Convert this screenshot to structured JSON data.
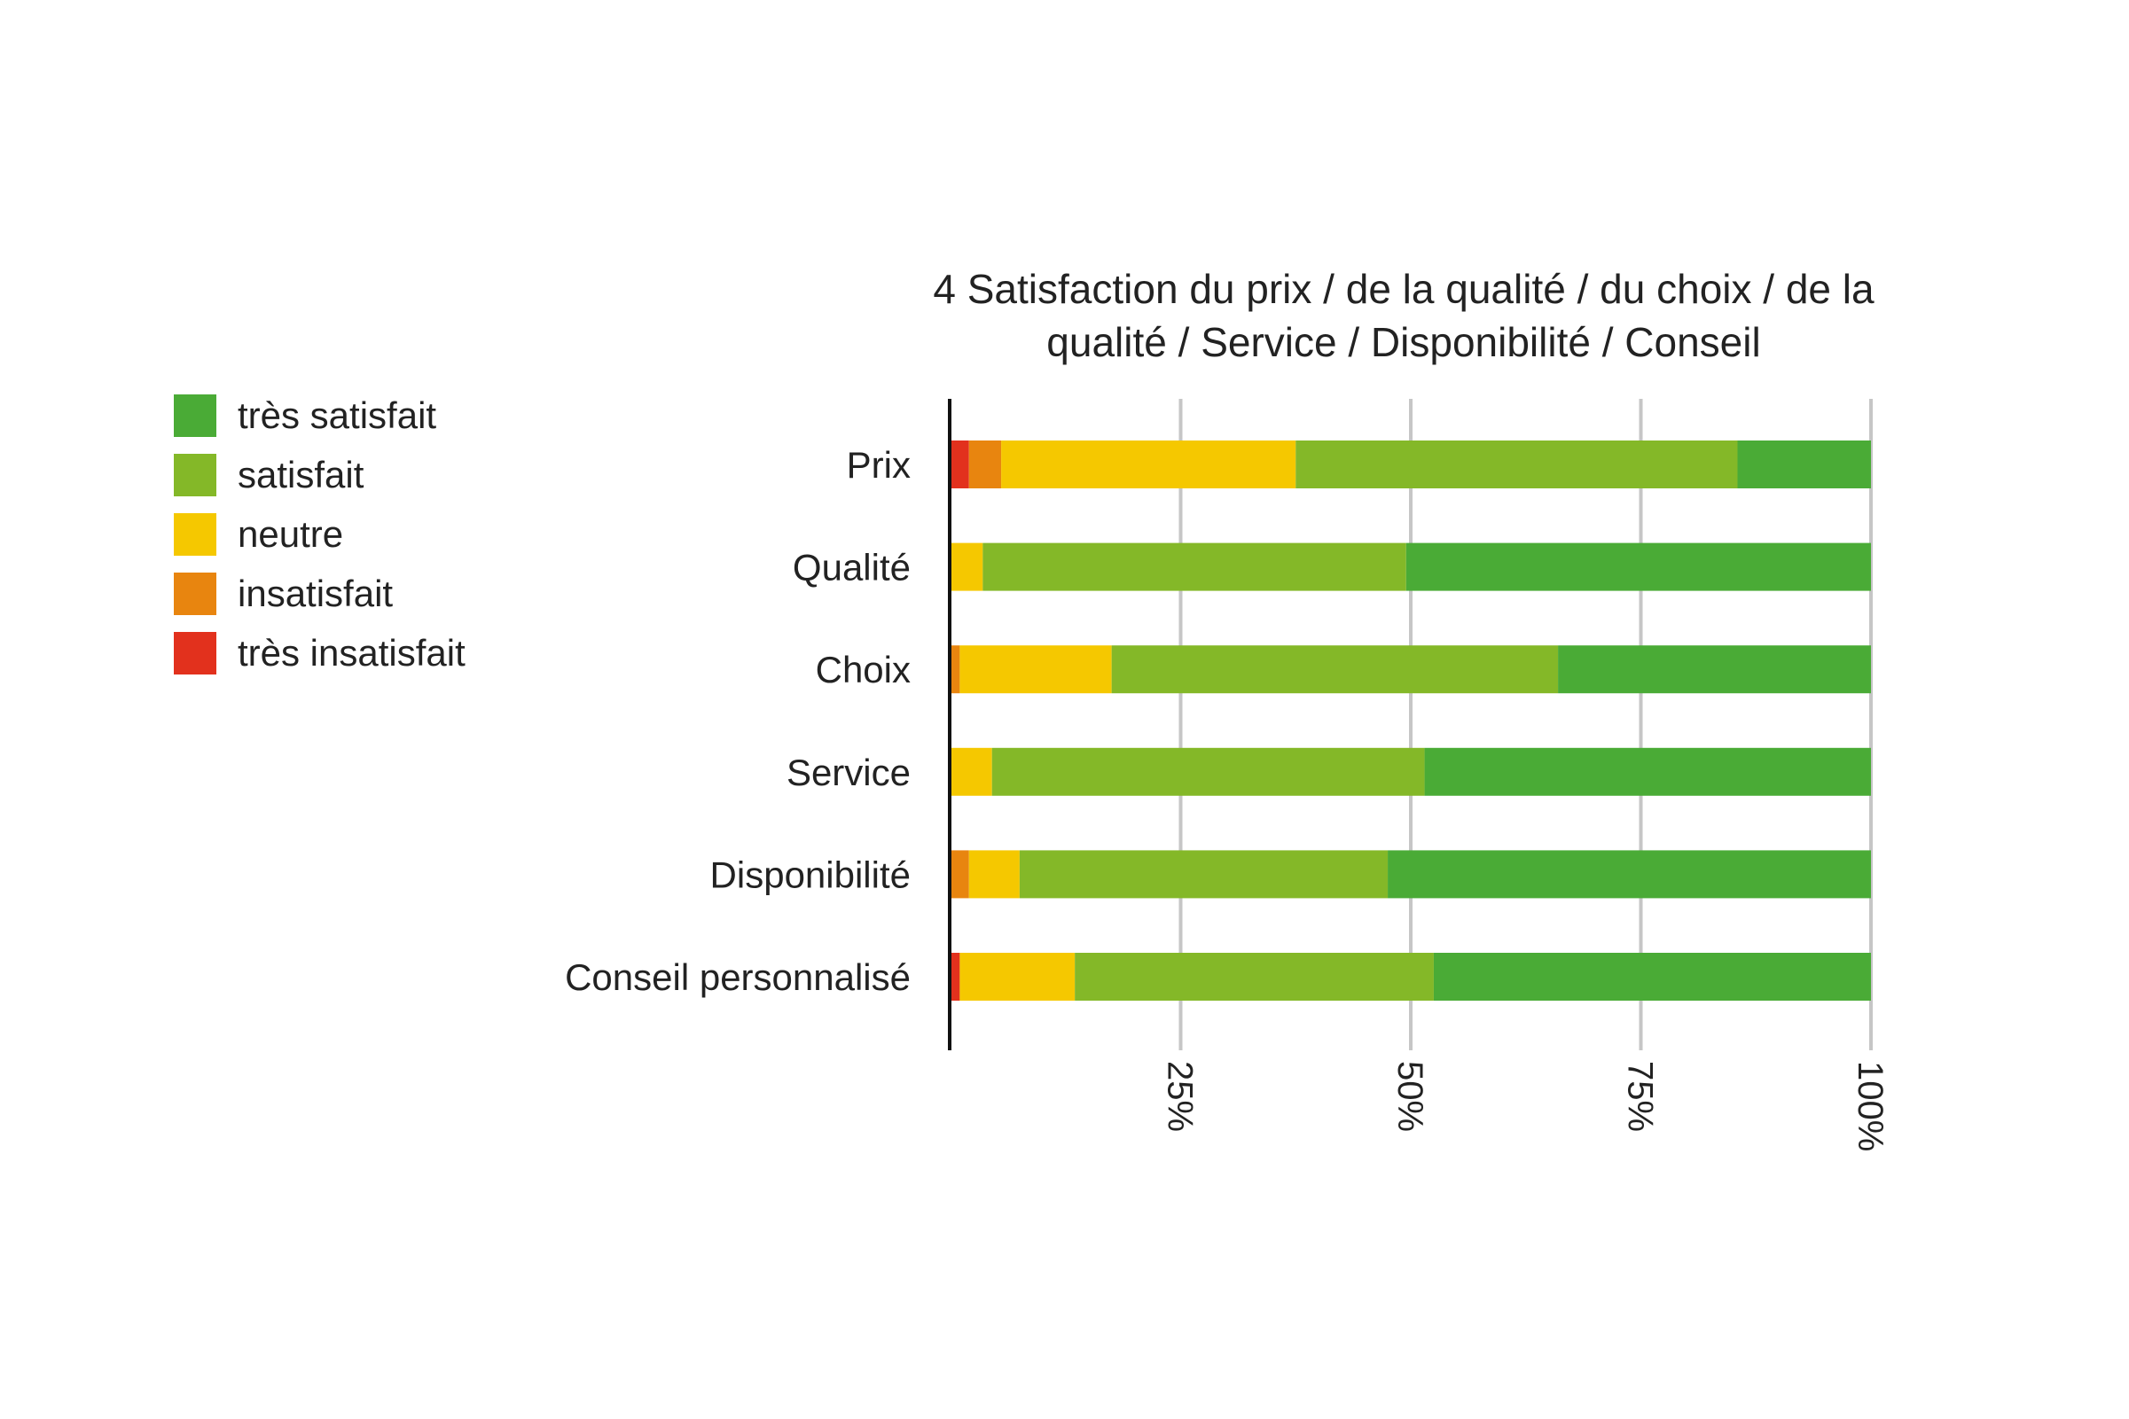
{
  "chart_data": {
    "type": "bar",
    "orientation": "horizontal",
    "stacked": "percent",
    "title_lines": [
      "4 Satisfaction du prix / de la qualité / du choix / de la",
      "qualité / Service / Disponibilité / Conseil"
    ],
    "categories": [
      "Prix",
      "Qualité",
      "Choix",
      "Service",
      "Disponibilité",
      "Conseil personnalisé"
    ],
    "series": [
      {
        "name": "très insatisfait",
        "color": "#e2311d",
        "values": [
          2,
          0,
          0,
          0,
          0,
          1
        ]
      },
      {
        "name": "insatisfait",
        "color": "#e8850f",
        "values": [
          3.5,
          0,
          1,
          0,
          2,
          0
        ]
      },
      {
        "name": "neutre",
        "color": "#f5c800",
        "values": [
          32,
          3.5,
          16.5,
          4.5,
          5.5,
          12.5
        ]
      },
      {
        "name": "satisfait",
        "color": "#84b828",
        "values": [
          48,
          46,
          48.5,
          47,
          40,
          39
        ]
      },
      {
        "name": "très satisfait",
        "color": "#4aab36",
        "values": [
          14.5,
          50.5,
          34,
          48.5,
          52.5,
          47.5
        ]
      }
    ],
    "xlim": [
      0,
      100
    ],
    "xticks": [
      25,
      50,
      75,
      100
    ],
    "xtick_labels": [
      "25%",
      "50%",
      "75%",
      "100%"
    ],
    "grid": "vertical",
    "legend_position": "left",
    "legend_order": [
      "très satisfait",
      "satisfait",
      "neutre",
      "insatisfait",
      "très insatisfait"
    ]
  }
}
